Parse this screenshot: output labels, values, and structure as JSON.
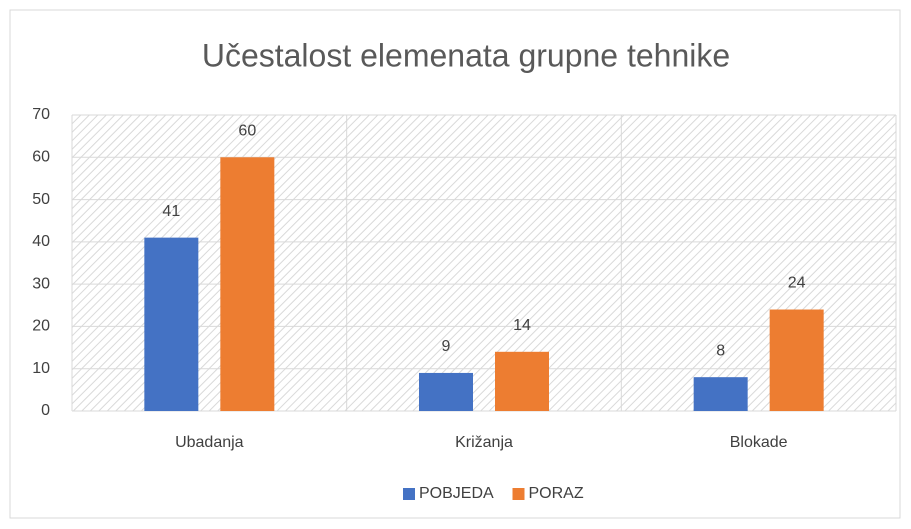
{
  "chart_data": {
    "type": "bar",
    "title": "Učestalost elemenata grupne tehnike",
    "categories": [
      "Ubadanja",
      "Križanja",
      "Blokade"
    ],
    "series": [
      {
        "name": "POBJEDA",
        "color": "#4472c4",
        "values": [
          41,
          9,
          8
        ]
      },
      {
        "name": "PORAZ",
        "color": "#ed7d31",
        "values": [
          60,
          14,
          24
        ]
      }
    ],
    "ylim": [
      0,
      70
    ],
    "yticks": [
      0,
      10,
      20,
      30,
      40,
      50,
      60,
      70
    ],
    "grid": true,
    "legend": "bottom"
  }
}
